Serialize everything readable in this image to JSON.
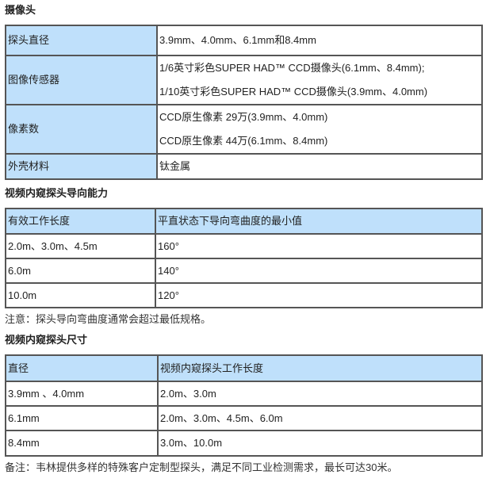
{
  "camera": {
    "title": "摄像头",
    "rows": [
      {
        "k": "探头直径",
        "v": [
          "3.9mm、4.0mm、6.1mm和8.4mm"
        ]
      },
      {
        "k": "图像传感器",
        "v": [
          "1/6英寸彩色SUPER HAD™ CCD摄像头(6.1mm、8.4mm);",
          "1/10英寸彩色SUPER HAD™ CCD摄像头(3.9mm、4.0mm)"
        ]
      },
      {
        "k": "像素数",
        "v": [
          "CCD原生像素 29万(3.9mm、4.0mm)",
          "CCD原生像素 44万(6.1mm、8.4mm)"
        ]
      },
      {
        "k": "外壳材料",
        "v": [
          "钛金属"
        ]
      }
    ]
  },
  "articulation": {
    "title": "视频内窥探头导向能力",
    "header": [
      "有效工作长度",
      "平直状态下导向弯曲度的最小值"
    ],
    "rows": [
      [
        "2.0m、3.0m、4.5m",
        "160°"
      ],
      [
        "6.0m",
        "140°"
      ],
      [
        "10.0m",
        "120°"
      ]
    ],
    "note": "注意：探头导向弯曲度通常会超过最低规格。"
  },
  "sizes": {
    "title": "视频内窥探头尺寸",
    "header": [
      "直径",
      "视频内窥探头工作长度"
    ],
    "rows": [
      [
        "3.9mm 、4.0mm",
        "2.0m、3.0m"
      ],
      [
        "6.1mm",
        "2.0m、3.0m、4.5m、6.0m"
      ],
      [
        "8.4mm",
        "3.0m、10.0m"
      ]
    ],
    "note": "备注：韦林提供多样的特殊客户定制型探头，满足不同工业检测需求，最长可达30米。"
  }
}
